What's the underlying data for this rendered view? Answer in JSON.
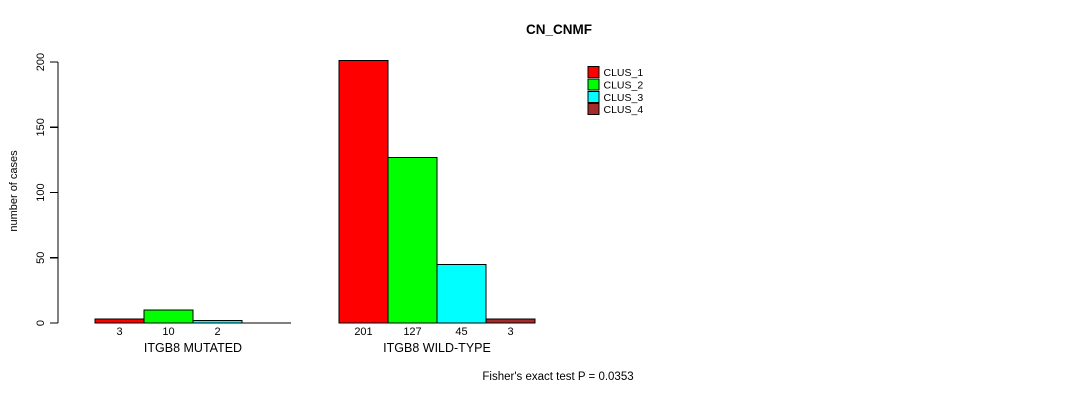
{
  "figure": {
    "title": "CN_CNMF",
    "y_axis_label": "number of cases",
    "annotation": "Fisher's exact test P = 0.0353"
  },
  "chart_data": {
    "type": "bar",
    "title": "CN_CNMF",
    "xlabel": "",
    "ylabel": "number of cases",
    "ylim": [
      0,
      200
    ],
    "yticks": [
      0,
      50,
      100,
      150,
      200
    ],
    "grid": false,
    "legend_position": "top-right",
    "categories": [
      "ITGB8 MUTATED",
      "ITGB8 WILD-TYPE"
    ],
    "series": [
      {
        "name": "CLUS_1",
        "color": "#FF0000",
        "values": [
          3,
          201
        ]
      },
      {
        "name": "CLUS_2",
        "color": "#00FF00",
        "values": [
          10,
          127
        ]
      },
      {
        "name": "CLUS_3",
        "color": "#00FFFF",
        "values": [
          2,
          45
        ]
      },
      {
        "name": "CLUS_4",
        "color": "#A52A2A",
        "values": [
          0,
          3
        ]
      }
    ],
    "bar_value_labels": [
      [
        "3",
        "10",
        "2",
        ""
      ],
      [
        "201",
        "127",
        "45",
        "3"
      ]
    ],
    "annotation": "Fisher's exact test P = 0.0353"
  }
}
